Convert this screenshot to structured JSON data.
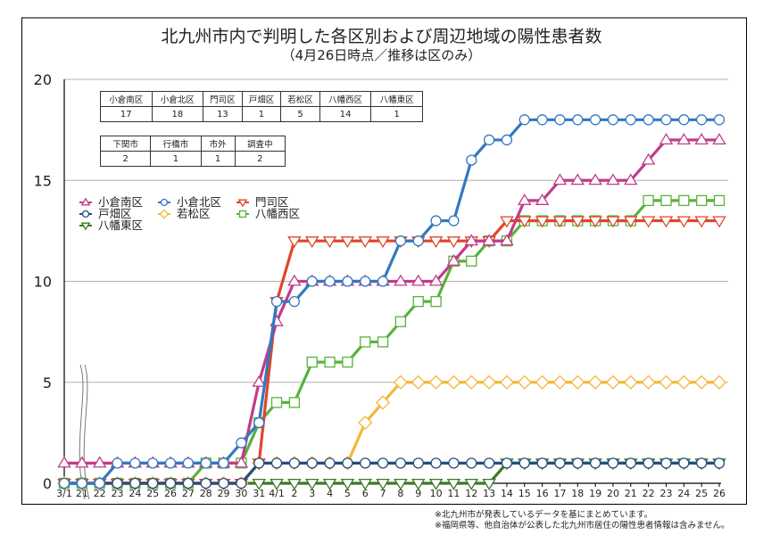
{
  "title": "北九州市内で判明した各区別および周辺地域の陽性患者数",
  "subtitle": "（4月26日時点／推移は区のみ）",
  "table_wards": {
    "headers": [
      "小倉南区",
      "小倉北区",
      "門司区",
      "戸畑区",
      "若松区",
      "八幡西区",
      "八幡東区"
    ],
    "values": [
      "17",
      "18",
      "13",
      "1",
      "5",
      "14",
      "1"
    ]
  },
  "table_other": {
    "headers": [
      "下関市",
      "行橋市",
      "市外",
      "調査中"
    ],
    "values": [
      "2",
      "1",
      "1",
      "2"
    ]
  },
  "legend": [
    {
      "label": "小倉南区",
      "marker": "triangle-up",
      "color": "#c23b8a"
    },
    {
      "label": "小倉北区",
      "marker": "circle",
      "color": "#3478c0"
    },
    {
      "label": "門司区",
      "marker": "triangle-down",
      "color": "#e0452a"
    },
    {
      "label": "戸畑区",
      "marker": "circle",
      "color": "#264e7e"
    },
    {
      "label": "若松区",
      "marker": "diamond",
      "color": "#f2b83a"
    },
    {
      "label": "八幡西区",
      "marker": "square",
      "color": "#58b23c"
    },
    {
      "label": "八幡東区",
      "marker": "triangle-down",
      "color": "#3a7a26"
    }
  ],
  "notes": [
    "※北九州市が発表しているデータを基にまとめています。",
    "※福岡県等、他自治体が公表した北九州市居住の陽性患者情報は含みません。"
  ],
  "chart_data": {
    "type": "line",
    "title": "北九州市内で判明した各区別および周辺地域の陽性患者数",
    "subtitle": "（4月26日時点／推移は区のみ）",
    "xlabel": "",
    "ylabel": "",
    "ylim": [
      0,
      20
    ],
    "yticks": [
      0,
      5,
      10,
      15,
      20
    ],
    "grid": "horizontal",
    "axis_break_after": "3/1",
    "legend_position": "upper-left",
    "categories": [
      "3/1",
      "21",
      "22",
      "23",
      "24",
      "25",
      "26",
      "27",
      "28",
      "29",
      "30",
      "31",
      "4/1",
      "2",
      "3",
      "4",
      "5",
      "6",
      "7",
      "8",
      "9",
      "10",
      "11",
      "12",
      "13",
      "14",
      "15",
      "16",
      "17",
      "18",
      "19",
      "20",
      "21",
      "22",
      "23",
      "24",
      "25",
      "26"
    ],
    "series": [
      {
        "name": "小倉南区",
        "color": "#c23b8a",
        "marker": "triangle-up",
        "values": [
          1,
          1,
          1,
          1,
          1,
          1,
          1,
          1,
          1,
          1,
          1,
          5,
          8,
          10,
          10,
          10,
          10,
          10,
          10,
          10,
          10,
          10,
          11,
          12,
          12,
          12,
          14,
          14,
          15,
          15,
          15,
          15,
          15,
          16,
          17,
          17,
          17,
          17
        ]
      },
      {
        "name": "小倉北区",
        "color": "#3478c0",
        "marker": "circle",
        "values": [
          0,
          0,
          0,
          1,
          1,
          1,
          1,
          1,
          1,
          1,
          2,
          3,
          9,
          9,
          10,
          10,
          10,
          10,
          10,
          12,
          12,
          13,
          13,
          16,
          17,
          17,
          18,
          18,
          18,
          18,
          18,
          18,
          18,
          18,
          18,
          18,
          18,
          18
        ]
      },
      {
        "name": "門司区",
        "color": "#e0452a",
        "marker": "triangle-down",
        "values": [
          0,
          0,
          0,
          0,
          0,
          0,
          0,
          0,
          0,
          0,
          0,
          1,
          9,
          12,
          12,
          12,
          12,
          12,
          12,
          12,
          12,
          12,
          12,
          12,
          12,
          13,
          13,
          13,
          13,
          13,
          13,
          13,
          13,
          13,
          13,
          13,
          13,
          13
        ]
      },
      {
        "name": "戸畑区",
        "color": "#264e7e",
        "marker": "circle",
        "values": [
          0,
          0,
          0,
          0,
          0,
          0,
          0,
          0,
          0,
          0,
          0,
          1,
          1,
          1,
          1,
          1,
          1,
          1,
          1,
          1,
          1,
          1,
          1,
          1,
          1,
          1,
          1,
          1,
          1,
          1,
          1,
          1,
          1,
          1,
          1,
          1,
          1,
          1
        ]
      },
      {
        "name": "若松区",
        "color": "#f2b83a",
        "marker": "diamond",
        "values": [
          0,
          0,
          0,
          0,
          0,
          0,
          0,
          0,
          0,
          0,
          0,
          1,
          1,
          1,
          1,
          1,
          1,
          3,
          4,
          5,
          5,
          5,
          5,
          5,
          5,
          5,
          5,
          5,
          5,
          5,
          5,
          5,
          5,
          5,
          5,
          5,
          5,
          5
        ]
      },
      {
        "name": "八幡西区",
        "color": "#58b23c",
        "marker": "square",
        "values": [
          0,
          0,
          0,
          0,
          0,
          0,
          0,
          0,
          1,
          1,
          1,
          3,
          4,
          4,
          6,
          6,
          6,
          7,
          7,
          8,
          9,
          9,
          11,
          11,
          12,
          12,
          13,
          13,
          13,
          13,
          13,
          13,
          13,
          14,
          14,
          14,
          14,
          14
        ]
      },
      {
        "name": "八幡東区",
        "color": "#3a7a26",
        "marker": "triangle-down",
        "values": [
          0,
          0,
          0,
          0,
          0,
          0,
          0,
          0,
          0,
          0,
          0,
          0,
          0,
          0,
          0,
          0,
          0,
          0,
          0,
          0,
          0,
          0,
          0,
          0,
          0,
          1,
          1,
          1,
          1,
          1,
          1,
          1,
          1,
          1,
          1,
          1,
          1,
          1
        ]
      }
    ]
  }
}
